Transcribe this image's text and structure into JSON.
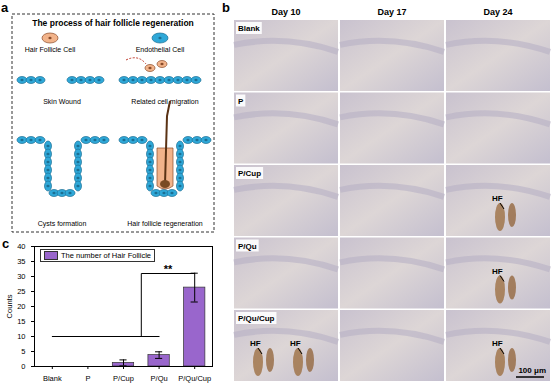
{
  "panel_a": {
    "letter": "a",
    "title": "The process of hair follicle regeneration",
    "cell_labels": [
      "Hair Follicle Cell",
      "Endothelial Cell"
    ],
    "stages": [
      "Skin Wound",
      "Related cell migration",
      "Cysts formation",
      "Hair follicle regeneration"
    ]
  },
  "panel_b": {
    "letter": "b",
    "columns": [
      "Day 10",
      "Day 17",
      "Day 24"
    ],
    "rows": [
      "Blank",
      "P",
      "P/Cup",
      "P/Qu",
      "P/Qu/Cup"
    ],
    "annotations": [
      {
        "row": "P/Cup",
        "column": "Day 24",
        "label": "HF"
      },
      {
        "row": "P/Qu",
        "column": "Day 24",
        "label": "HF"
      },
      {
        "row": "P/Qu/Cup",
        "column": "Day 10",
        "label": "HF"
      },
      {
        "row": "P/Qu/Cup",
        "column": "Day 10",
        "label": "HF"
      },
      {
        "row": "P/Qu/Cup",
        "column": "Day 24",
        "label": "HF"
      }
    ],
    "scale_bar": "100 μm"
  },
  "chart_data": {
    "type": "bar",
    "letter": "c",
    "categories": [
      "Blank",
      "P",
      "P/Cup",
      "P/Qu",
      "P/Qu/Cup"
    ],
    "series": [
      {
        "name": "The number of Hair Follicle",
        "color": "#9966cc",
        "values": [
          0,
          0,
          1.2,
          3.8,
          26.3
        ],
        "errors": [
          0,
          0,
          1.0,
          1.1,
          4.8
        ]
      }
    ],
    "ylabel": "Counts",
    "ylim": [
      0,
      40
    ],
    "yticks": [
      0,
      5,
      10,
      15,
      20,
      25,
      30,
      35,
      40
    ],
    "legend": "top-left",
    "significance": {
      "label": "**",
      "lower_y": 10,
      "upper_y": 31
    }
  }
}
